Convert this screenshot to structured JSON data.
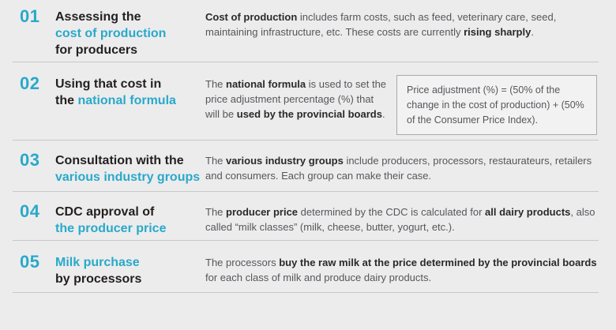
{
  "accent_color": "#29a9c9",
  "steps": [
    {
      "number": "01",
      "title_lines": [
        [
          {
            "t": "Assessing the"
          }
        ],
        [
          {
            "t": "cost of production",
            "c": "accent"
          }
        ],
        [
          {
            "t": "for producers"
          }
        ]
      ],
      "description": [
        {
          "t": "Cost of production",
          "b": true
        },
        {
          "t": " includes farm costs, such as feed, veterinary care, seed, maintaining infrastructure, etc. These costs are currently "
        },
        {
          "t": "rising sharply",
          "b": true
        },
        {
          "t": "."
        }
      ]
    },
    {
      "number": "02",
      "title_lines": [
        [
          {
            "t": "Using that cost in"
          }
        ],
        [
          {
            "t": "the "
          },
          {
            "t": "national formula",
            "c": "accent"
          }
        ]
      ],
      "description": [
        {
          "t": "The "
        },
        {
          "t": "national formula",
          "b": true
        },
        {
          "t": " is used to set the price adjustment percentage (%) that will be "
        },
        {
          "t": "used by the provincial boards",
          "b": true
        },
        {
          "t": "."
        }
      ],
      "formula": "Price adjustment (%) = (50% of the change in the cost of production) + (50% of the Consumer Price Index)."
    },
    {
      "number": "03",
      "title_lines": [
        [
          {
            "t": "Consultation with the"
          }
        ],
        [
          {
            "t": "various industry groups",
            "c": "accent"
          }
        ]
      ],
      "description": [
        {
          "t": "The "
        },
        {
          "t": "various industry groups",
          "b": true
        },
        {
          "t": " include producers, processors, restaurateurs, retailers and consumers. Each group can make their case."
        }
      ]
    },
    {
      "number": "04",
      "title_lines": [
        [
          {
            "t": "CDC approval of"
          }
        ],
        [
          {
            "t": "the producer price",
            "c": "accent"
          }
        ]
      ],
      "description": [
        {
          "t": "The "
        },
        {
          "t": "producer price",
          "b": true
        },
        {
          "t": " determined by the CDC is calculated for "
        },
        {
          "t": "all dairy products",
          "b": true
        },
        {
          "t": ", also called “milk classes” (milk, cheese, butter, yogurt, etc.)."
        }
      ]
    },
    {
      "number": "05",
      "title_lines": [
        [
          {
            "t": "Milk purchase",
            "c": "accent"
          }
        ],
        [
          {
            "t": "by processors"
          }
        ]
      ],
      "description": [
        {
          "t": "The processors "
        },
        {
          "t": "buy the raw milk at the price determined by the provincial boards",
          "b": true
        },
        {
          "t": " for each class of milk and produce dairy products."
        }
      ]
    }
  ]
}
